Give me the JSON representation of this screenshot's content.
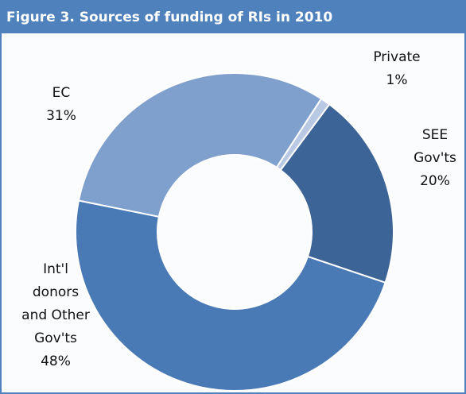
{
  "chart_data": {
    "type": "donut",
    "title": "Figure 3. Sources of funding of RIs in 2010",
    "categories": [
      "Private",
      "SEE\nGov'ts",
      "Int'l\ndonors\nand Other\nGov'ts",
      "EC"
    ],
    "values": [
      1,
      20,
      48,
      31
    ],
    "value_labels": [
      "1%",
      "20%",
      "48%",
      "31%"
    ],
    "colors": [
      "#b9c9e4",
      "#3d6496",
      "#4a7ab5",
      "#7f9fcd"
    ]
  }
}
